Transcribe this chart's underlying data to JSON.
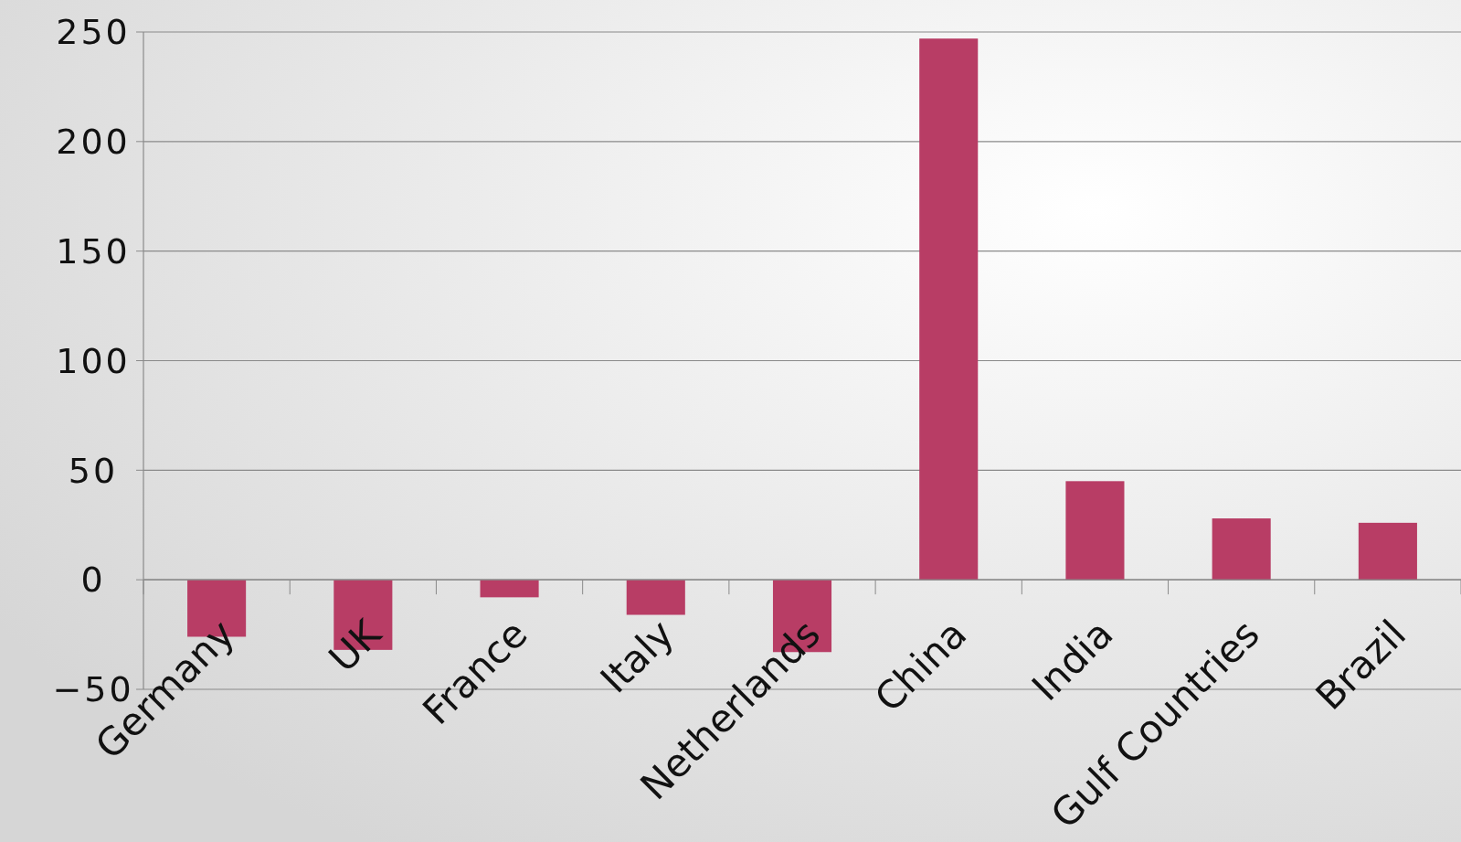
{
  "chart_data": {
    "type": "bar",
    "categories": [
      "Germany",
      "UK",
      "France",
      "Italy",
      "Netherlands",
      "China",
      "India",
      "Gulf Countries",
      "Brazil"
    ],
    "values": [
      -26,
      -32,
      -8,
      -16,
      -33,
      247,
      45,
      28,
      26
    ],
    "color": "#b83d65",
    "ylim": [
      -50,
      250
    ],
    "yticks": [
      -50,
      0,
      50,
      100,
      150,
      200,
      250
    ],
    "grid": "y"
  }
}
